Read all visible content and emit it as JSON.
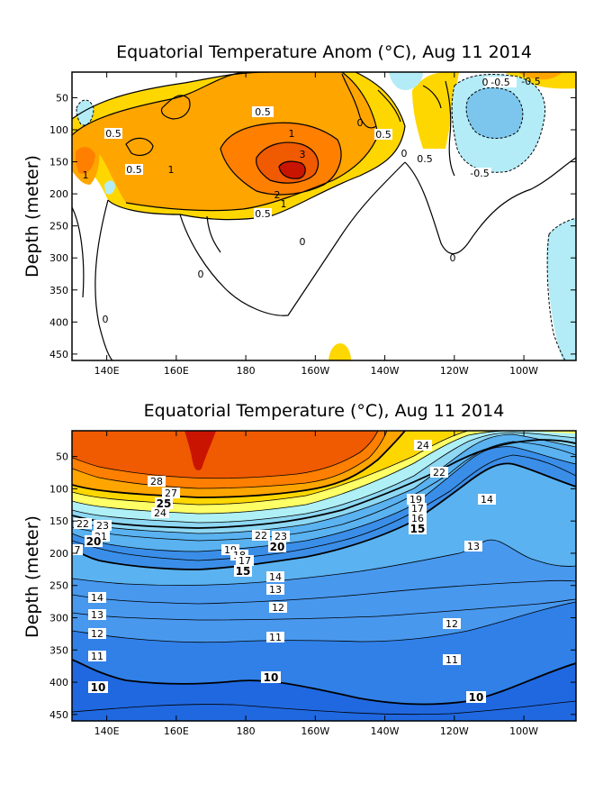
{
  "chart_data": [
    {
      "type": "heatmap",
      "title": "Equatorial Temperature Anom (°C), Aug 11 2014",
      "ylabel": "Depth (meter)",
      "xlabel": "",
      "x_ticks": [
        "140E",
        "160E",
        "180",
        "160W",
        "140W",
        "120W",
        "100W"
      ],
      "y_ticks": [
        "50",
        "100",
        "150",
        "200",
        "250",
        "300",
        "350",
        "400",
        "450"
      ],
      "xlim": [
        "130E",
        "85W"
      ],
      "ylim": [
        460,
        10
      ],
      "contour_levels": [
        -1,
        -0.5,
        0,
        0.5,
        1,
        2,
        3
      ],
      "contour_labels": [
        "-0.5",
        "-0.5",
        "-0.5",
        "0.5",
        "0.5",
        "0.5",
        "0.5",
        "0.5",
        "1",
        "1",
        "1",
        "1",
        "2",
        "3",
        "0",
        "0",
        "0",
        "0",
        "0",
        "0",
        "0"
      ],
      "colors": {
        "warm_0_5": "#ffd700",
        "warm_1": "#ffa500",
        "warm_2": "#ff7f00",
        "warm_3": "#f05a00",
        "warm_4": "#c81400",
        "cool_0_5": "#b3ecf7",
        "cool_1": "#7cc6ee"
      }
    },
    {
      "type": "heatmap",
      "title": "Equatorial Temperature (°C), Aug 11 2014",
      "ylabel": "Depth (meter)",
      "xlabel": "",
      "x_ticks": [
        "140E",
        "160E",
        "180",
        "160W",
        "140W",
        "120W",
        "100W"
      ],
      "y_ticks": [
        "50",
        "100",
        "150",
        "200",
        "250",
        "300",
        "350",
        "400",
        "450"
      ],
      "xlim": [
        "130E",
        "85W"
      ],
      "ylim": [
        460,
        10
      ],
      "contour_levels": [
        10,
        11,
        12,
        13,
        14,
        15,
        16,
        17,
        18,
        19,
        20,
        21,
        22,
        23,
        24,
        25,
        26,
        27,
        28,
        29
      ],
      "contour_labels": [
        "24",
        "22",
        "28",
        "27",
        "25",
        "24",
        "22",
        "23",
        "21",
        "20",
        "7",
        "22",
        "23",
        "20",
        "19",
        "18",
        "17",
        "15",
        "19",
        "17",
        "16",
        "15",
        "14",
        "13",
        "14",
        "13",
        "12",
        "12",
        "12",
        "11",
        "11",
        "11",
        "10",
        "10",
        "10",
        "14",
        "13",
        "12"
      ],
      "colors": {
        "warm_29": "#c81400",
        "warm_28": "#f05a00",
        "warm_27": "#ff7f00",
        "warm_25": "#ffa500",
        "warm_24": "#ffd700",
        "mid_22": "#ffff66",
        "mid_20": "#aef0f5",
        "cool_18": "#8ed8f4",
        "cool_16": "#5ab2f0",
        "cool_12": "#4898ee",
        "cool_10": "#3080e8",
        "cool_8": "#2068e0"
      }
    }
  ]
}
